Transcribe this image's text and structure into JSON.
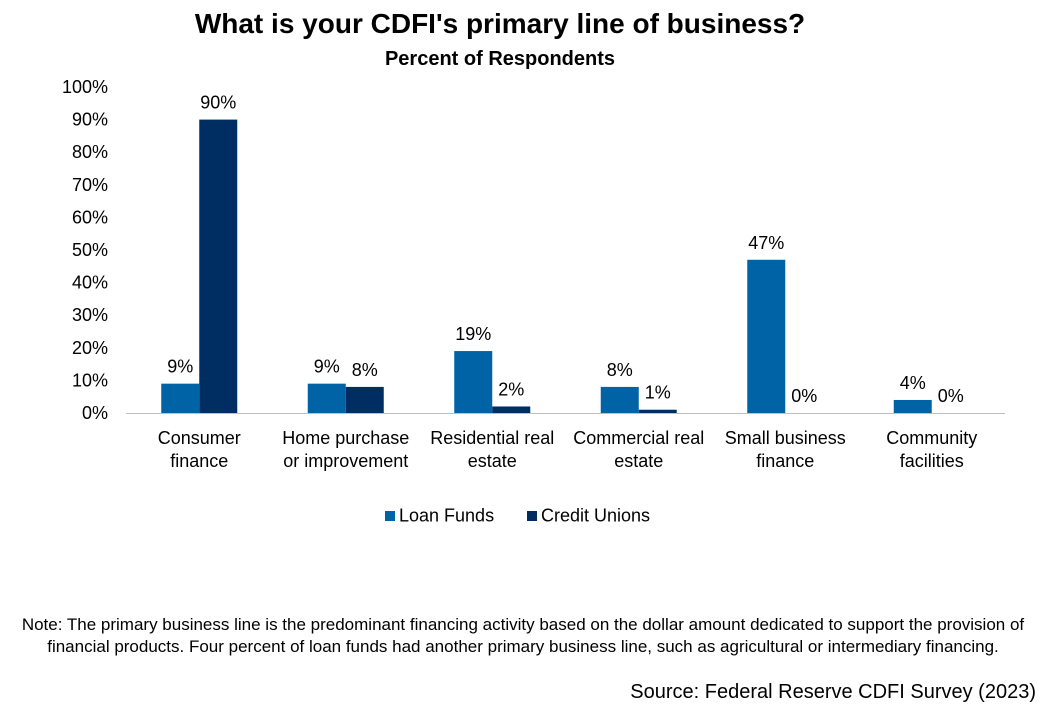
{
  "chart_data": {
    "type": "bar",
    "title": "What is your CDFI's primary line of business?",
    "subtitle": "Percent of Respondents",
    "categories": [
      [
        "Consumer",
        "finance"
      ],
      [
        "Home purchase",
        "or improvement"
      ],
      [
        "Residential real",
        "estate"
      ],
      [
        "Commercial real",
        "estate"
      ],
      [
        "Small business",
        "finance"
      ],
      [
        "Community",
        "facilities"
      ]
    ],
    "series": [
      {
        "name": "Loan Funds",
        "color": "#0063A6",
        "values": [
          9,
          9,
          19,
          8,
          47,
          4
        ],
        "labels": [
          "9%",
          "9%",
          "19%",
          "8%",
          "47%",
          "4%"
        ]
      },
      {
        "name": "Credit Unions",
        "color": "#002D62",
        "values": [
          90,
          8,
          2,
          1,
          0,
          0
        ],
        "labels": [
          "90%",
          "8%",
          "2%",
          "1%",
          "0%",
          "0%"
        ]
      }
    ],
    "ylim": [
      0,
      100
    ],
    "yticks": [
      0,
      10,
      20,
      30,
      40,
      50,
      60,
      70,
      80,
      90,
      100
    ],
    "ytick_labels": [
      "0%",
      "10%",
      "20%",
      "30%",
      "40%",
      "50%",
      "60%",
      "70%",
      "80%",
      "90%",
      "100%"
    ],
    "grid": false,
    "legend_position": "bottom"
  },
  "note": "Note: The primary business line is the predominant financing activity based on the dollar amount dedicated to support the provision of financial products. Four percent of loan funds had another primary business line, such as agricultural or intermediary financing.",
  "source": "Source: Federal Reserve CDFI Survey (2023)"
}
